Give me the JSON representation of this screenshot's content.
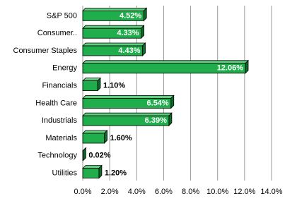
{
  "chart_data": {
    "type": "bar",
    "orientation": "horizontal",
    "categories": [
      "S&P 500",
      "Consumer..",
      "Consumer Staples",
      "Energy",
      "Financials",
      "Health Care",
      "Industrials",
      "Materials",
      "Technology",
      "Utilities"
    ],
    "values": [
      4.52,
      4.33,
      4.43,
      12.06,
      1.1,
      6.54,
      6.39,
      1.6,
      0.02,
      1.2
    ],
    "value_labels": [
      "4.52%",
      "4.33%",
      "4.43%",
      "12.06%",
      "1.10%",
      "6.54%",
      "6.39%",
      "1.60%",
      "0.02%",
      "1.20%"
    ],
    "color": "#1fae4b",
    "xlim": [
      0,
      14
    ],
    "xticks": [
      {
        "value": 0,
        "label": "0.0%"
      },
      {
        "value": 2,
        "label": "2.0%"
      },
      {
        "value": 4,
        "label": "4.0%"
      },
      {
        "value": 6,
        "label": "6.0%"
      },
      {
        "value": 8,
        "label": "8.0%"
      },
      {
        "value": 10,
        "label": "10.0%"
      },
      {
        "value": 12,
        "label": "12.0%"
      },
      {
        "value": 14,
        "label": "14.0%"
      }
    ],
    "grid": true
  }
}
